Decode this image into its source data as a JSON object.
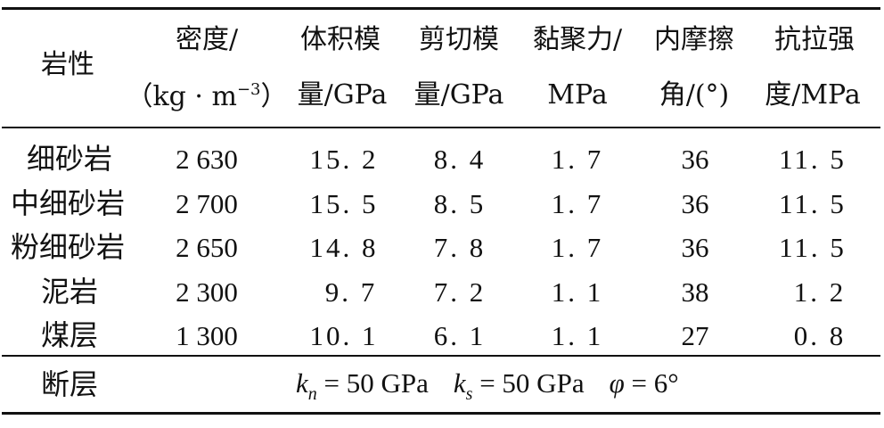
{
  "table": {
    "headers": {
      "rock_type": "岩性",
      "density_l1": "密度/",
      "density_l2_open": "（kg · m",
      "density_l2_exp": "−3",
      "density_l2_close": "）",
      "bulk_l1": "体积模",
      "bulk_l2": "量/GPa",
      "shear_l1": "剪切模",
      "shear_l2": "量/GPa",
      "cohesion_l1": "黏聚力/",
      "cohesion_l2": "MPa",
      "friction_l1": "内摩擦",
      "friction_l2": "角/(°)",
      "tensile_l1": "抗拉强",
      "tensile_l2": "度/MPa"
    },
    "rows": [
      {
        "rock_type": "细砂岩",
        "density": "2 630",
        "bulk": "15. 2",
        "shear": "8. 4",
        "cohesion": "1. 7",
        "friction": "36",
        "tensile": "11. 5"
      },
      {
        "rock_type": "中细砂岩",
        "density": "2 700",
        "bulk": "15. 5",
        "shear": "8. 5",
        "cohesion": "1. 7",
        "friction": "36",
        "tensile": "11. 5"
      },
      {
        "rock_type": "粉细砂岩",
        "density": "2 650",
        "bulk": "14. 8",
        "shear": "7. 8",
        "cohesion": "1. 7",
        "friction": "36",
        "tensile": "11. 5"
      },
      {
        "rock_type": "泥岩",
        "density": "2 300",
        "bulk": "9. 7",
        "shear": "7. 2",
        "cohesion": "1. 1",
        "friction": "38",
        "tensile": "1. 2"
      },
      {
        "rock_type": "煤层",
        "density": "1 300",
        "bulk": "10. 1",
        "shear": "6. 1",
        "cohesion": "1. 1",
        "friction": "27",
        "tensile": "0. 8"
      }
    ],
    "footer": {
      "label": "断层",
      "kn_symbol": "k",
      "kn_sub": "n",
      "kn_value": " = 50  GPa",
      "ks_symbol": "k",
      "ks_sub": "s",
      "ks_value": " = 50  GPa",
      "phi_symbol": "φ",
      "phi_value": " = 6°"
    }
  }
}
